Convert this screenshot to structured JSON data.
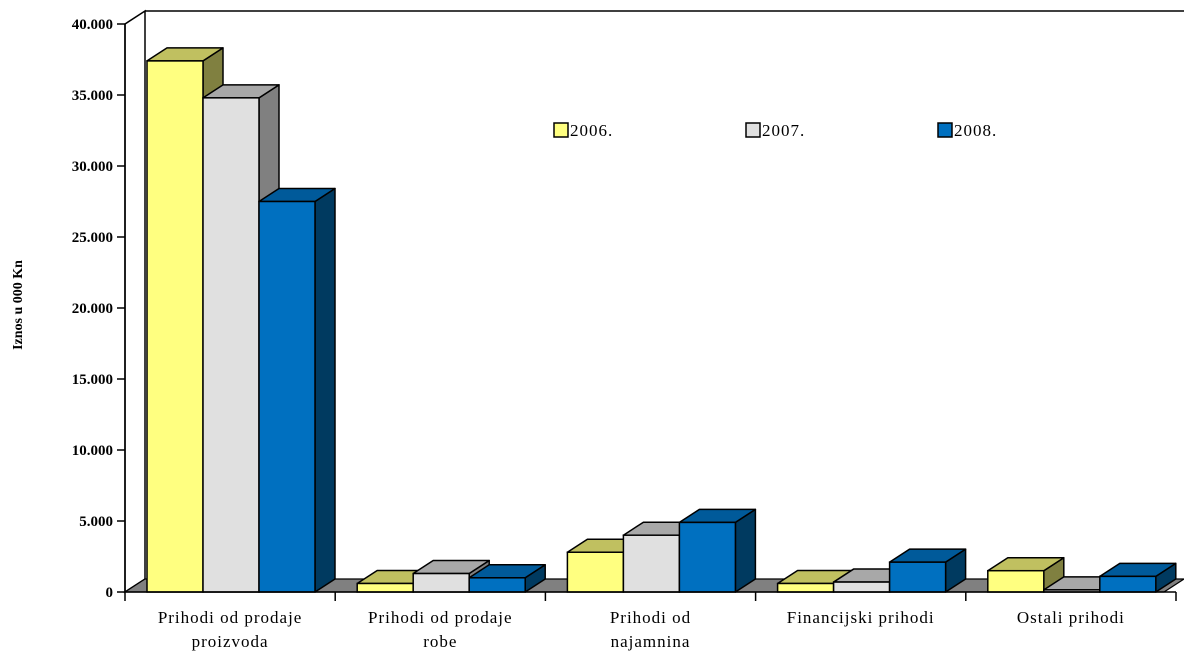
{
  "chart_data": {
    "type": "bar",
    "ylabel": "Iznos u 000 Kn",
    "ylim": [
      0,
      40000
    ],
    "yticks": [
      "0",
      "5.000",
      "10.000",
      "15.000",
      "20.000",
      "25.000",
      "30.000",
      "35.000",
      "40.000"
    ],
    "categories": [
      [
        "Prihodi od prodaje",
        "proizvoda"
      ],
      [
        "Prihodi od prodaje",
        "robe"
      ],
      [
        "Prihodi od",
        "najamnina"
      ],
      [
        "Financijski prihodi"
      ],
      [
        "Ostali prihodi"
      ]
    ],
    "series": [
      {
        "name": "2006.",
        "color": "#ffff80",
        "side": "#808040",
        "top": "#c0c060",
        "values": [
          37400,
          600,
          2800,
          600,
          1500
        ]
      },
      {
        "name": "2007.",
        "color": "#e0e0e0",
        "side": "#808080",
        "top": "#a8a8a8",
        "values": [
          34800,
          1300,
          4000,
          700,
          150
        ]
      },
      {
        "name": "2008.",
        "color": "#0070c0",
        "side": "#003a60",
        "top": "#005a9a",
        "values": [
          27500,
          1000,
          4900,
          2100,
          1100
        ]
      }
    ],
    "legend_position": "top-right",
    "grid": false
  }
}
